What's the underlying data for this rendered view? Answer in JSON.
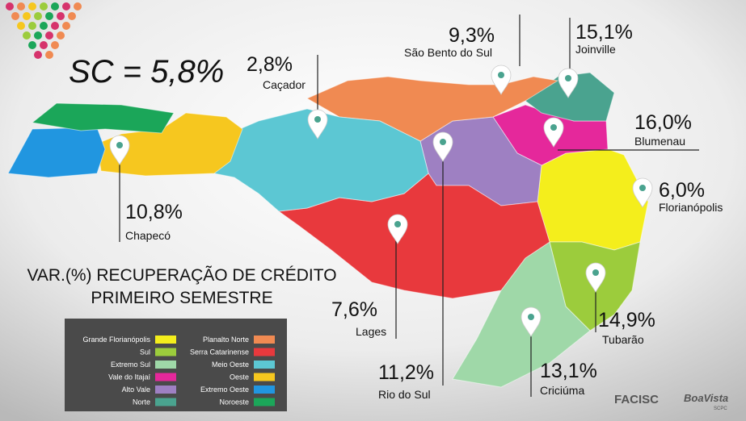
{
  "headline": "SC = 5,8%",
  "subtitle": [
    "VAR.(%) RECUPERAÇÃO DE CRÉDITO",
    "PRIMEIRO SEMESTRE"
  ],
  "callouts": [
    {
      "value": "10,8%",
      "city": "Chapecó"
    },
    {
      "value": "2,8%",
      "city": "Caçador"
    },
    {
      "value": "9,3%",
      "city": "São Bento do Sul"
    },
    {
      "value": "15,1%",
      "city": "Joinville"
    },
    {
      "value": "16,0%",
      "city": "Blumenau"
    },
    {
      "value": "6,0%",
      "city": "Florianópolis"
    },
    {
      "value": "7,6%",
      "city": "Lages"
    },
    {
      "value": "11,2%",
      "city": "Rio do Sul"
    },
    {
      "value": "13,1%",
      "city": "Criciúma"
    },
    {
      "value": "14,9%",
      "city": "Tubarão"
    }
  ],
  "legend": [
    {
      "name": "Grande Florianópolis",
      "color": "#f4ee1c"
    },
    {
      "name": "Sul",
      "color": "#9ccc3c"
    },
    {
      "name": "Extremo Sul",
      "color": "#9fd8a8"
    },
    {
      "name": "Vale do Itajaí",
      "color": "#e5289b"
    },
    {
      "name": "Alto Vale",
      "color": "#9e80c2"
    },
    {
      "name": "Norte",
      "color": "#4aa38f"
    },
    {
      "name": "Planalto Norte",
      "color": "#f08a52"
    },
    {
      "name": "Serra Catarinense",
      "color": "#e8393d"
    },
    {
      "name": "Meio Oeste",
      "color": "#5cc7d3"
    },
    {
      "name": "Oeste",
      "color": "#f6c71f"
    },
    {
      "name": "Extremo Oeste",
      "color": "#2196e0"
    },
    {
      "name": "Noroeste",
      "color": "#1ba659"
    }
  ],
  "logos": [
    "FACISC",
    "BoaVista",
    "SCPC"
  ]
}
